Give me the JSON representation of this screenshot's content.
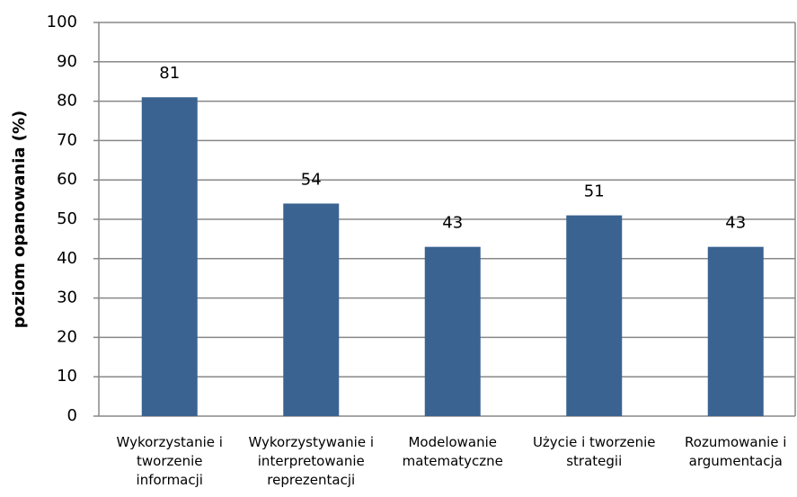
{
  "chart_data": {
    "type": "bar",
    "y_label": "poziom opanowania (%)",
    "categories": [
      "Wykorzystanie i tworzenie informacji",
      "Wykorzystywanie i interpretowanie reprezentacji",
      "Modelowanie matematyczne",
      "Użycie i tworzenie strategii",
      "Rozumowanie i argumentacja"
    ],
    "values": [
      81,
      54,
      43,
      51,
      43
    ],
    "color": "#3a6391",
    "ylim": [
      0,
      100
    ],
    "yticks": [
      0,
      10,
      20,
      30,
      40,
      50,
      60,
      70,
      80,
      90,
      100
    ],
    "grid": true
  }
}
